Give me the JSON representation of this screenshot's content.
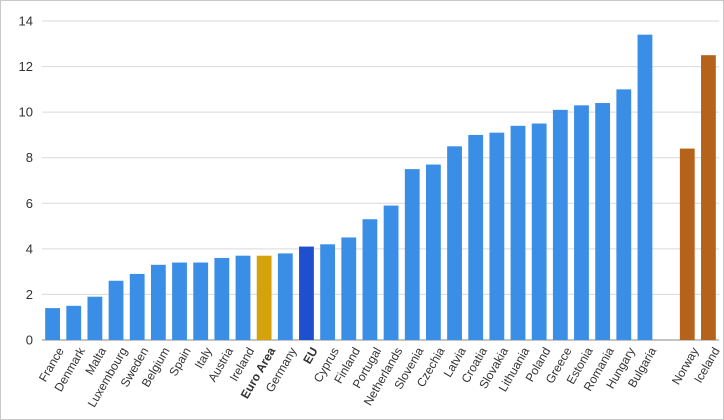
{
  "chart_data": {
    "type": "bar",
    "title": "",
    "xlabel": "",
    "ylabel": "",
    "ylim": [
      0,
      14
    ],
    "yticks": [
      0,
      2,
      4,
      6,
      8,
      10,
      12,
      14
    ],
    "grid": true,
    "legend": "none",
    "categories": [
      "France",
      "Denmark",
      "Malta",
      "Luxembourg",
      "Sweden",
      "Belgium",
      "Spain",
      "Italy",
      "Austria",
      "Ireland",
      "Euro Area",
      "Germany",
      "EU",
      "Cyprus",
      "Finland",
      "Portugal",
      "Netherlands",
      "Slovenia",
      "Czechia",
      "Latvia",
      "Croatia",
      "Slovakia",
      "Lithuania",
      "Poland",
      "Greece",
      "Estonia",
      "Romania",
      "Hungary",
      "Bulgaria",
      "",
      "Norway",
      "Iceland"
    ],
    "values": [
      1.4,
      1.5,
      1.9,
      2.6,
      2.9,
      3.3,
      3.4,
      3.4,
      3.6,
      3.7,
      3.7,
      3.8,
      4.1,
      4.2,
      4.5,
      5.3,
      5.9,
      7.5,
      7.7,
      8.5,
      9.0,
      9.1,
      9.4,
      9.5,
      10.1,
      10.3,
      10.4,
      11.0,
      13.4,
      null,
      8.4,
      12.5
    ],
    "bar_colors": [
      "#3a8ee6",
      "#3a8ee6",
      "#3a8ee6",
      "#3a8ee6",
      "#3a8ee6",
      "#3a8ee6",
      "#3a8ee6",
      "#3a8ee6",
      "#3a8ee6",
      "#3a8ee6",
      "#d4a20a",
      "#3a8ee6",
      "#1e4fcc",
      "#3a8ee6",
      "#3a8ee6",
      "#3a8ee6",
      "#3a8ee6",
      "#3a8ee6",
      "#3a8ee6",
      "#3a8ee6",
      "#3a8ee6",
      "#3a8ee6",
      "#3a8ee6",
      "#3a8ee6",
      "#3a8ee6",
      "#3a8ee6",
      "#3a8ee6",
      "#3a8ee6",
      "#3a8ee6",
      "#ffffff",
      "#b5621a",
      "#b5621a"
    ],
    "bold_categories": [
      "Euro Area",
      "EU"
    ]
  }
}
